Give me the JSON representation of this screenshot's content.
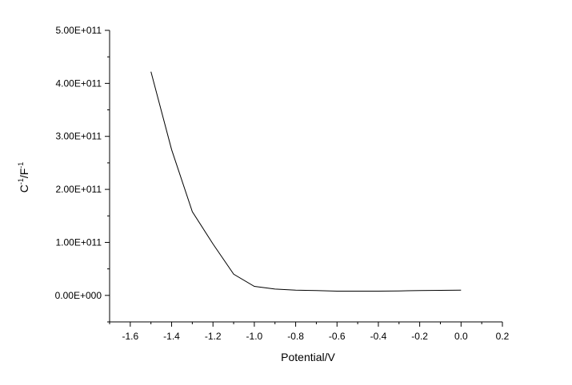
{
  "chart_data": {
    "type": "line",
    "title": "",
    "xlabel": "Potential/V",
    "ylabel_base": "C",
    "ylabel_sup1": "-1",
    "ylabel_mid": "/F",
    "ylabel_sup2": "-1",
    "xlim": [
      -1.7,
      0.2
    ],
    "ylim": [
      -50000000000,
      500000000000
    ],
    "x_ticks": [
      -1.6,
      -1.4,
      -1.2,
      -1.0,
      -0.8,
      -0.6,
      -0.4,
      -0.2,
      0.0,
      0.2
    ],
    "x_tick_labels": [
      "-1.6",
      "-1.4",
      "-1.2",
      "-1.0",
      "-0.8",
      "-0.6",
      "-0.4",
      "-0.2",
      "0.0",
      "0.2"
    ],
    "y_ticks": [
      0,
      100000000000,
      200000000000,
      300000000000,
      400000000000,
      500000000000
    ],
    "y_tick_labels": [
      "0.00E+000",
      "1.00E+011",
      "2.00E+011",
      "3.00E+011",
      "4.00E+011",
      "5.00E+011"
    ],
    "grid": false,
    "series": [
      {
        "color": "#000000",
        "x": [
          -1.5,
          -1.4,
          -1.3,
          -1.2,
          -1.1,
          -1.0,
          -0.9,
          -0.8,
          -0.7,
          -0.6,
          -0.5,
          -0.4,
          -0.3,
          -0.2,
          -0.1,
          0.0
        ],
        "y": [
          422000000000,
          275000000000,
          158000000000,
          97000000000,
          40000000000,
          17000000000,
          12000000000,
          10000000000,
          9000000000,
          8000000000,
          8000000000,
          8000000000,
          8500000000,
          9000000000,
          9500000000,
          10000000000
        ]
      }
    ]
  }
}
